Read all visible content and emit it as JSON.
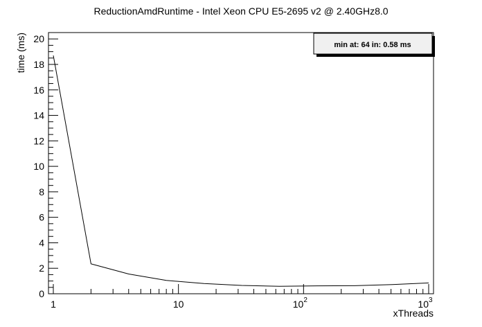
{
  "chart_data": {
    "type": "line",
    "title": "ReductionAmdRuntime - Intel Xeon CPU E5-2695 v2 @ 2.40GHz8.0",
    "xlabel": "xThreads",
    "ylabel": "time (ms)",
    "x_scale": "log",
    "xlim": [
      1,
      1000
    ],
    "ylim": [
      0,
      20.5
    ],
    "x_ticks": [
      {
        "value": 1,
        "label": "1"
      },
      {
        "value": 10,
        "label": "10"
      },
      {
        "value": 100,
        "label": "10",
        "exp": "2"
      },
      {
        "value": 1000,
        "label": "10",
        "exp": "3"
      }
    ],
    "y_ticks": [
      0,
      2,
      4,
      6,
      8,
      10,
      12,
      14,
      16,
      18,
      20
    ],
    "y_tick_labels": [
      "0",
      "2",
      "4",
      "6",
      "8",
      "10",
      "12",
      "14",
      "16",
      "18",
      "20"
    ],
    "grid": false,
    "legend_text": "min at: 64 in: 0.58 ms",
    "legend_position": "top-right",
    "series": [
      {
        "x": [
          1,
          2,
          4,
          8,
          16,
          32,
          64,
          128,
          256,
          512,
          1000
        ],
        "y": [
          18.7,
          2.35,
          1.55,
          1.05,
          0.8,
          0.65,
          0.58,
          0.62,
          0.63,
          0.72,
          0.85
        ],
        "color": "#000000"
      }
    ]
  }
}
